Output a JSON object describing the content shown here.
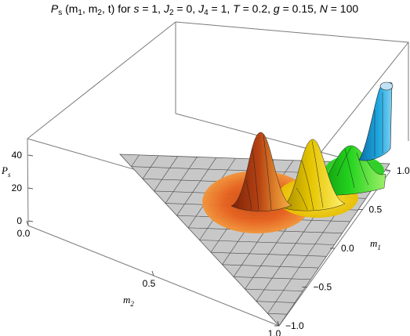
{
  "chart_data": {
    "type": "surface3d",
    "title_parts": {
      "symbol": "P",
      "symbol_sub": "s",
      "args": " (m",
      "args_sub1": "1",
      "args_mid": ", m",
      "args_sub2": "2",
      "args_tail": ", t) for ",
      "s": "s",
      "s_val": " = 1, ",
      "J2": "J",
      "J2_sub": "2",
      "J2_val": " = 0, ",
      "J4": "J",
      "J4_sub": "4",
      "J4_val": " = 1, ",
      "T": "T",
      "T_val": " = 0.2, ",
      "g": "g",
      "g_val": " = 0.15, ",
      "N": "N",
      "N_val": " = 100"
    },
    "axes": {
      "m2": {
        "label": "m",
        "label_sub": "2",
        "range": [
          0,
          1
        ],
        "ticks": [
          "0.0",
          "0.5",
          "1.0"
        ],
        "tick_values": [
          0,
          0.5,
          1
        ]
      },
      "m1": {
        "label": "m",
        "label_sub": "1",
        "range": [
          -1,
          1
        ],
        "ticks": [
          "-1.0",
          "-0.5",
          "0.0",
          "0.5",
          "1.0"
        ],
        "tick_values": [
          -1,
          -0.5,
          0,
          0.5,
          1
        ]
      },
      "z": {
        "label": "P",
        "label_sub": "s",
        "range": [
          0,
          45
        ],
        "ticks": [
          "0",
          "20",
          "40"
        ],
        "tick_values": [
          0,
          20,
          40
        ]
      }
    },
    "domain_note": "Triangular base region |m1| <= 1 - m2, drawn as gray mesh",
    "peaks": [
      {
        "m2": 0.5,
        "m1": 0.0,
        "height": 43,
        "color": "#c2410c"
      },
      {
        "m2": 0.5,
        "m1": 0.35,
        "height": 40,
        "color": "#e6c800"
      },
      {
        "m2": 0.48,
        "m1": 0.55,
        "height": 30,
        "color": "#22c01a"
      },
      {
        "m2": 0.0,
        "m1": 1.0,
        "height": 52,
        "color": "#1a9ad6"
      }
    ],
    "grid": true
  }
}
